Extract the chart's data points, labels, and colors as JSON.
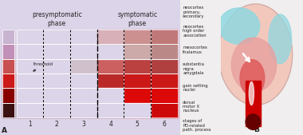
{
  "title_left": "presymptomatic\nphase",
  "title_right": "symptomatic\nphase",
  "stages": [
    "1",
    "2",
    "3",
    "4",
    "5",
    "6"
  ],
  "row_labels": [
    "neocortex\nprimary,\nsecondary",
    "neocortex\nhigh order\nassociation",
    "mesocortex\nthalamus",
    "substantia\nnigra\namygdala",
    "gain setting\nnuclei",
    "dorsal\nmotor X\nnucleus"
  ],
  "footer_label": "stages of\nPD-related\npath. process",
  "label_A": "A",
  "label_B": "B",
  "threshold_label": "threshold",
  "bg_color": "#dcd4e8",
  "left_strip_colors": [
    "#c8b4d0",
    "#c090b8",
    "#c85050",
    "#cc1a1a",
    "#880000",
    "#3a1010"
  ],
  "cell_colors": [
    [
      "#dcd4e8",
      "#dcd4e8",
      "#dcd4e8",
      "#d8b0b8",
      "#cc9090",
      "#c07878"
    ],
    [
      "#dcd4e8",
      "#dcd4e8",
      "#dcd4e8",
      "#dcd4e8",
      "#ccaaaa",
      "#bb8888"
    ],
    [
      "#dcd4e8",
      "#dcd4e8",
      "#d0c0cc",
      "#cc6060",
      "#bb4040",
      "#b04040"
    ],
    [
      "#cc2020",
      "#cc2020",
      "#cc2828",
      "#bb2828",
      "#cc1818",
      "#cc1818"
    ],
    [
      "#991010",
      "#991010",
      "#bb1818",
      "#cc1818",
      "#dd0808",
      "#dd0808"
    ],
    [
      "#4a0808",
      "#550a0a",
      "#771010",
      "#aa1010",
      "#cc0808",
      "#cc0808"
    ]
  ],
  "phase_div_col": 3,
  "figsize": [
    3.8,
    1.69
  ],
  "dpi": 100,
  "brain_outer_color": "#f0c0b8",
  "brain_cyan_color": "#90d8e0",
  "brain_pink_color": "#e8a898",
  "brain_red_color": "#dd1818",
  "brain_dark_red": "#770000",
  "brain_white": "#ffffff"
}
